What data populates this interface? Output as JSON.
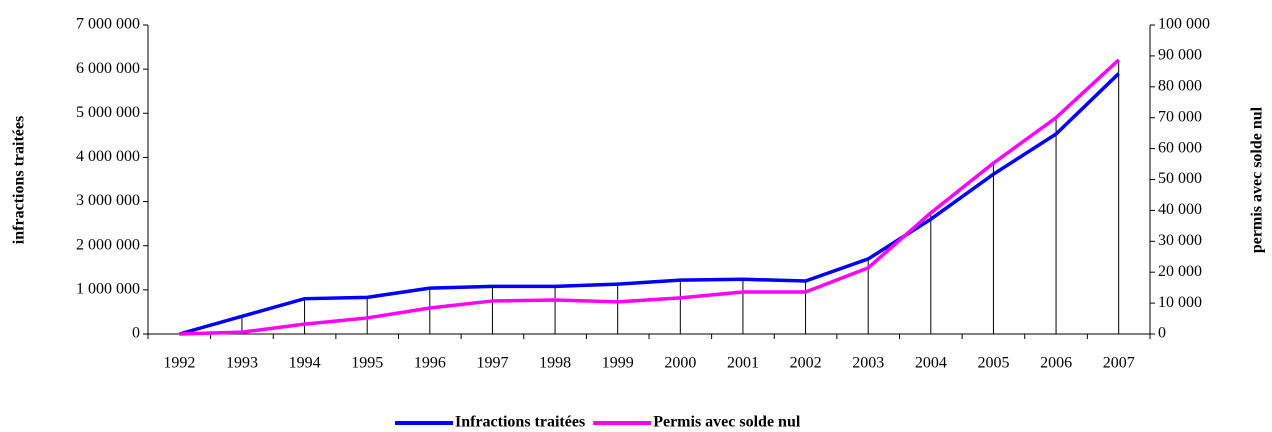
{
  "chart_data": {
    "type": "line",
    "categories": [
      "1992",
      "1993",
      "1994",
      "1995",
      "1996",
      "1997",
      "1998",
      "1999",
      "2000",
      "2001",
      "2002",
      "2003",
      "2004",
      "2005",
      "2006",
      "2007"
    ],
    "ylabel": "infractions traitées",
    "y2label": "permis avec solde nul",
    "ylim": [
      0,
      7000000
    ],
    "yticks": [
      0,
      {
        "value": 1000000,
        "label": "1 000 000"
      },
      {
        "value": 2000000,
        "label": "2 000 000"
      },
      {
        "value": 3000000,
        "label": "3 000 000"
      },
      {
        "value": 4000000,
        "label": "4 000 000"
      },
      {
        "value": 5000000,
        "label": "5 000 000"
      },
      {
        "value": 6000000,
        "label": "6 000 000"
      },
      {
        "value": 7000000,
        "label": "7 000 000"
      }
    ],
    "y2lim": [
      0,
      100000
    ],
    "y2ticks": [
      0,
      {
        "value": 10000,
        "label": "10 000"
      },
      {
        "value": 20000,
        "label": "20 000"
      },
      {
        "value": 30000,
        "label": "30 000"
      },
      {
        "value": 40000,
        "label": "40 000"
      },
      {
        "value": 50000,
        "label": "50 000"
      },
      {
        "value": 60000,
        "label": "60 000"
      },
      {
        "value": 70000,
        "label": "70 000"
      },
      {
        "value": 80000,
        "label": "80 000"
      },
      {
        "value": 90000,
        "label": "90 000"
      },
      {
        "value": 100000,
        "label": "100 000"
      }
    ],
    "legend": "bottom",
    "series": [
      {
        "name": "Infractions traitées",
        "color": "#0000ff",
        "values": [
          0,
          400000,
          800000,
          830000,
          1040000,
          1080000,
          1080000,
          1130000,
          1220000,
          1240000,
          1200000,
          1700000,
          2600000,
          3620000,
          4530000,
          5900000
        ]
      },
      {
        "name": "Permis avec solde nul",
        "color": "#ff00ff",
        "axis": "y2",
        "values": [
          0,
          600,
          3200,
          5200,
          8400,
          10700,
          11000,
          10400,
          11700,
          13600,
          13600,
          21400,
          39200,
          55300,
          70000,
          88700
        ]
      }
    ]
  }
}
